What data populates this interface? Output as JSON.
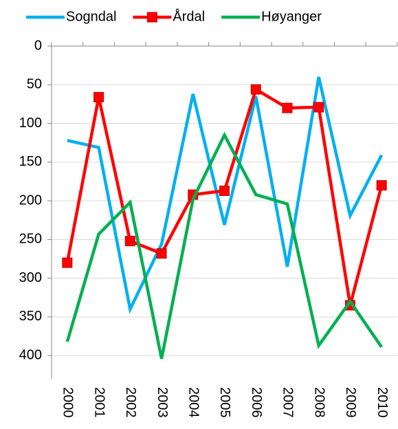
{
  "chart_data": {
    "type": "line",
    "categories": [
      "2000",
      "2001",
      "2002",
      "2003",
      "2004",
      "2005",
      "2006",
      "2007",
      "2008",
      "2009",
      "2010"
    ],
    "series": [
      {
        "name": "Sogndal",
        "color": "#00b0f0",
        "values": [
          122,
          131,
          340,
          256,
          62,
          231,
          65,
          285,
          40,
          219,
          141
        ]
      },
      {
        "name": "Årdal",
        "color": "#ff0000",
        "marker": "square",
        "values": [
          280,
          66,
          252,
          268,
          192,
          187,
          56,
          80,
          79,
          335,
          180
        ]
      },
      {
        "name": "Høyanger",
        "color": "#00b050",
        "values": [
          382,
          243,
          202,
          404,
          198,
          115,
          192,
          204,
          387,
          330,
          389
        ]
      }
    ],
    "ylim": [
      0,
      430
    ],
    "yticks": [
      0,
      50,
      100,
      150,
      200,
      250,
      300,
      350,
      400
    ],
    "y_inverted": true,
    "grid": true,
    "legend": "top"
  }
}
